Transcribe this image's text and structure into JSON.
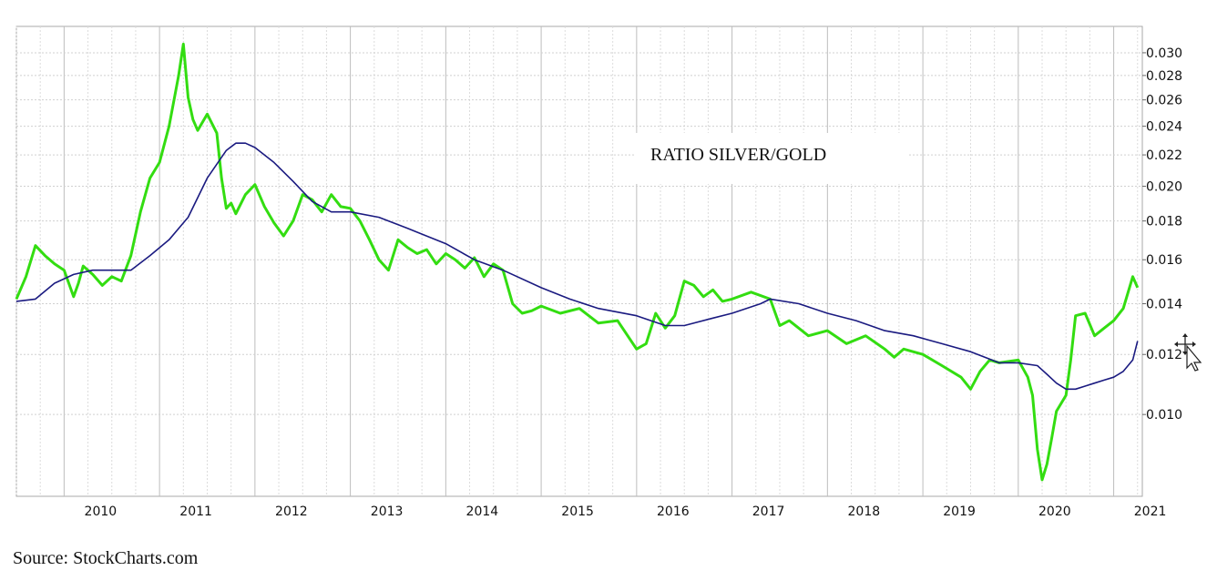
{
  "chart_data": {
    "type": "line",
    "y_scale": "log",
    "ylim": [
      0.0078,
      0.0325
    ],
    "xlim": [
      2009.5,
      2021.3
    ],
    "y_ticks": [
      0.01,
      0.012,
      0.014,
      0.016,
      0.018,
      0.02,
      0.022,
      0.024,
      0.026,
      0.028,
      0.03
    ],
    "y_tick_labels": [
      "0.010",
      "0.012",
      "0.014",
      "0.016",
      "0.018",
      "0.020",
      "0.022",
      "0.024",
      "0.026",
      "0.028",
      "0.030"
    ],
    "x_ticks": [
      2010,
      2011,
      2012,
      2013,
      2014,
      2015,
      2016,
      2017,
      2018,
      2019,
      2020,
      2021
    ],
    "x_tick_labels": [
      "2010",
      "2011",
      "2012",
      "2013",
      "2014",
      "2015",
      "2016",
      "2017",
      "2018",
      "2019",
      "2020",
      "2021"
    ],
    "grid": true,
    "colors": {
      "ratio": "#33dd11",
      "moving_average": "#1a1a80",
      "grid": "#c8c8c8"
    },
    "annotation": "RATIO SILVER/GOLD",
    "series": [
      {
        "key": "ratio",
        "x": [
          2009.5,
          2009.6,
          2009.7,
          2009.8,
          2009.9,
          2010.0,
          2010.1,
          2010.15,
          2010.2,
          2010.3,
          2010.4,
          2010.5,
          2010.6,
          2010.7,
          2010.8,
          2010.9,
          2011.0,
          2011.1,
          2011.2,
          2011.25,
          2011.3,
          2011.35,
          2011.4,
          2011.5,
          2011.6,
          2011.65,
          2011.7,
          2011.75,
          2011.8,
          2011.9,
          2012.0,
          2012.1,
          2012.2,
          2012.3,
          2012.4,
          2012.5,
          2012.6,
          2012.7,
          2012.8,
          2012.9,
          2013.0,
          2013.1,
          2013.2,
          2013.3,
          2013.4,
          2013.5,
          2013.6,
          2013.7,
          2013.8,
          2013.9,
          2014.0,
          2014.1,
          2014.2,
          2014.3,
          2014.4,
          2014.5,
          2014.6,
          2014.7,
          2014.8,
          2014.9,
          2015.0,
          2015.2,
          2015.4,
          2015.6,
          2015.8,
          2016.0,
          2016.1,
          2016.2,
          2016.3,
          2016.4,
          2016.5,
          2016.6,
          2016.7,
          2016.8,
          2016.9,
          2017.0,
          2017.2,
          2017.4,
          2017.5,
          2017.6,
          2017.8,
          2018.0,
          2018.2,
          2018.4,
          2018.6,
          2018.7,
          2018.8,
          2019.0,
          2019.2,
          2019.4,
          2019.5,
          2019.6,
          2019.7,
          2019.8,
          2020.0,
          2020.1,
          2020.15,
          2020.2,
          2020.25,
          2020.3,
          2020.35,
          2020.4,
          2020.5,
          2020.55,
          2020.6,
          2020.7,
          2020.8,
          2020.9,
          2021.0,
          2021.1,
          2021.2,
          2021.25
        ],
        "values": [
          0.0142,
          0.0152,
          0.0167,
          0.0162,
          0.0158,
          0.0155,
          0.0143,
          0.0149,
          0.0157,
          0.0153,
          0.0148,
          0.0152,
          0.015,
          0.0162,
          0.0185,
          0.0205,
          0.0215,
          0.024,
          0.028,
          0.0308,
          0.0262,
          0.0245,
          0.0237,
          0.0249,
          0.0235,
          0.0205,
          0.0187,
          0.019,
          0.0184,
          0.0195,
          0.0201,
          0.0188,
          0.0179,
          0.0172,
          0.018,
          0.0195,
          0.0192,
          0.0185,
          0.0195,
          0.0188,
          0.0187,
          0.018,
          0.017,
          0.016,
          0.0155,
          0.017,
          0.0166,
          0.0163,
          0.0165,
          0.0158,
          0.0163,
          0.016,
          0.0156,
          0.0161,
          0.0152,
          0.0158,
          0.0155,
          0.014,
          0.0136,
          0.0137,
          0.0139,
          0.0136,
          0.0138,
          0.0132,
          0.0133,
          0.0122,
          0.0124,
          0.0136,
          0.013,
          0.0135,
          0.015,
          0.0148,
          0.0143,
          0.0146,
          0.0141,
          0.0142,
          0.0145,
          0.0142,
          0.0131,
          0.0133,
          0.0127,
          0.0129,
          0.0124,
          0.0127,
          0.0122,
          0.0119,
          0.0122,
          0.012,
          0.0116,
          0.0112,
          0.0108,
          0.0114,
          0.0118,
          0.0117,
          0.0118,
          0.0112,
          0.0106,
          0.009,
          0.0082,
          0.0086,
          0.0093,
          0.0101,
          0.0106,
          0.0118,
          0.0135,
          0.0136,
          0.0127,
          0.013,
          0.0133,
          0.0138,
          0.0152,
          0.0147
        ]
      },
      {
        "key": "moving_average",
        "x": [
          2009.5,
          2009.7,
          2009.9,
          2010.1,
          2010.3,
          2010.5,
          2010.7,
          2010.9,
          2011.1,
          2011.3,
          2011.5,
          2011.7,
          2011.8,
          2011.9,
          2012.0,
          2012.2,
          2012.4,
          2012.6,
          2012.8,
          2013.0,
          2013.3,
          2013.6,
          2014.0,
          2014.3,
          2014.6,
          2015.0,
          2015.3,
          2015.6,
          2016.0,
          2016.3,
          2016.5,
          2016.8,
          2017.0,
          2017.3,
          2017.4,
          2017.7,
          2018.0,
          2018.3,
          2018.6,
          2018.9,
          2019.2,
          2019.5,
          2019.8,
          2020.0,
          2020.2,
          2020.3,
          2020.4,
          2020.5,
          2020.6,
          2020.7,
          2020.8,
          2020.9,
          2021.0,
          2021.1,
          2021.2,
          2021.25
        ],
        "values": [
          0.0141,
          0.0142,
          0.0149,
          0.0153,
          0.0155,
          0.0155,
          0.0155,
          0.0162,
          0.017,
          0.0182,
          0.0205,
          0.0223,
          0.0228,
          0.0228,
          0.0225,
          0.0215,
          0.0203,
          0.0191,
          0.0185,
          0.0185,
          0.0182,
          0.0176,
          0.0168,
          0.016,
          0.0155,
          0.0147,
          0.0142,
          0.0138,
          0.0135,
          0.0131,
          0.0131,
          0.0134,
          0.0136,
          0.014,
          0.0142,
          0.014,
          0.0136,
          0.0133,
          0.0129,
          0.0127,
          0.0124,
          0.0121,
          0.0117,
          0.0117,
          0.0116,
          0.0113,
          0.011,
          0.0108,
          0.0108,
          0.0109,
          0.011,
          0.0111,
          0.0112,
          0.0114,
          0.0118,
          0.0125
        ]
      }
    ]
  },
  "source_text": "Source: StockCharts.com",
  "cursor_icon": "move-cursor-icon"
}
